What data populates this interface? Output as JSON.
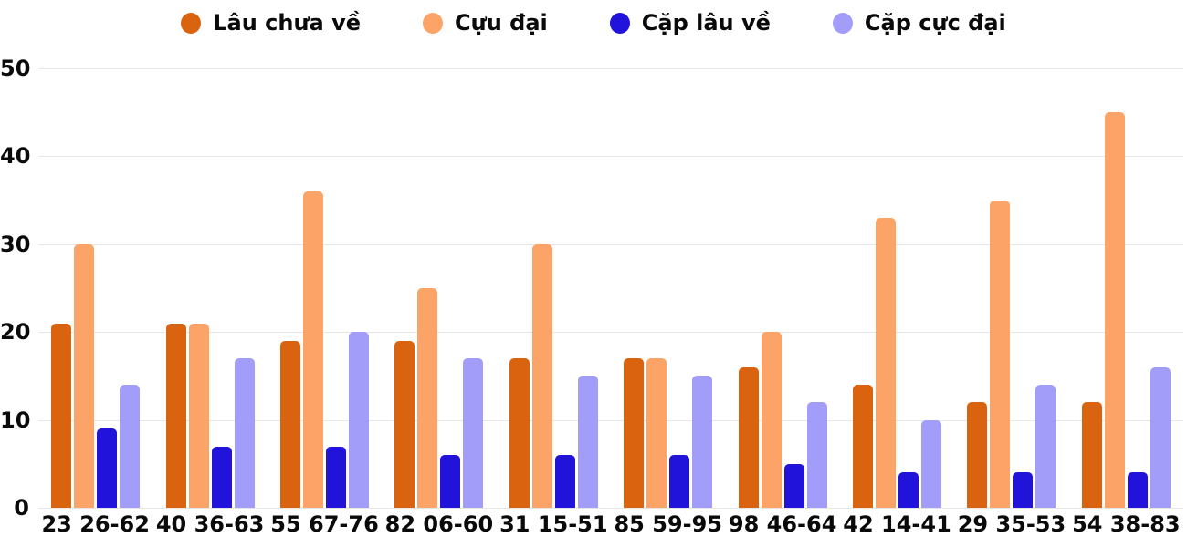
{
  "chart_data": {
    "type": "bar",
    "title": "",
    "xlabel": "",
    "ylabel": "",
    "ylim": [
      0,
      50
    ],
    "yticks": [
      0,
      10,
      20,
      30,
      40,
      50
    ],
    "grid": true,
    "legend_position": "top",
    "gridline_color": "#e6e6e6",
    "categories": [
      "23 26-62",
      "40 36-63",
      "55 67-76",
      "82 06-60",
      "31 15-51",
      "85 59-95",
      "98 46-64",
      "42 14-41",
      "29 35-53",
      "54 38-83"
    ],
    "series": [
      {
        "name": "Lâu chưa về",
        "color": "#d9630f",
        "values": [
          21,
          21,
          19,
          19,
          17,
          17,
          16,
          14,
          12,
          12
        ]
      },
      {
        "name": "Cựu đại",
        "color": "#fca468",
        "values": [
          30,
          21,
          36,
          25,
          30,
          17,
          20,
          33,
          35,
          45
        ]
      },
      {
        "name": "Cặp lâu về",
        "color": "#2213db",
        "values": [
          9,
          7,
          7,
          6,
          6,
          6,
          5,
          4,
          4,
          4
        ]
      },
      {
        "name": "Cặp cực đại",
        "color": "#a39dfa",
        "values": [
          14,
          17,
          20,
          17,
          15,
          15,
          12,
          10,
          14,
          16
        ]
      }
    ]
  },
  "legend": {
    "items": [
      {
        "label": "Lâu chưa về",
        "color": "#d9630f"
      },
      {
        "label": "Cựu đại",
        "color": "#fca468"
      },
      {
        "label": "Cặp lâu về",
        "color": "#2213db"
      },
      {
        "label": "Cặp cực đại",
        "color": "#a39dfa"
      }
    ]
  }
}
